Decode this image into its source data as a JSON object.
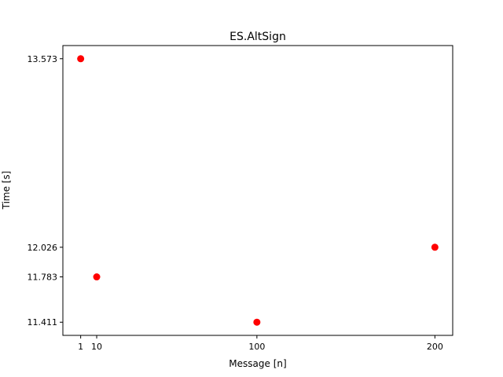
{
  "chart_data": {
    "type": "scatter",
    "title": "ES.AltSign",
    "xlabel": "Message [n]",
    "ylabel": "Time [s]",
    "x": [
      1,
      10,
      100,
      200
    ],
    "y": [
      13.573,
      11.783,
      11.411,
      12.026
    ],
    "xticks": [
      1,
      10,
      100,
      200
    ],
    "xtick_labels": [
      "1",
      "10",
      "100",
      "200"
    ],
    "yticks": [
      11.411,
      11.783,
      12.026,
      13.573
    ],
    "ytick_labels": [
      "11.411",
      "11.783",
      "12.026",
      "13.573"
    ],
    "xlim": [
      -9,
      210
    ],
    "ylim": [
      11.303,
      13.681
    ],
    "grid": false,
    "marker_color": "#ff0000"
  }
}
